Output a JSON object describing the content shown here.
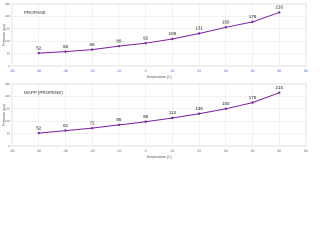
{
  "chart_data": [
    {
      "type": "line",
      "title": "PROPANE",
      "x_label": "Temperature (C)",
      "y_label": "Pressure (psi)",
      "x": [
        -40,
        -30,
        -20,
        -10,
        0,
        10,
        20,
        30,
        40,
        50
      ],
      "values": [
        52,
        58,
        66,
        80,
        92,
        109,
        131,
        156,
        178,
        216
      ],
      "color": "#7b1fa2",
      "xlim": [
        -50,
        60
      ],
      "xticks": [
        -50,
        -40,
        -30,
        -20,
        -10,
        0,
        10,
        20,
        30,
        40,
        50,
        60
      ],
      "ylim": [
        0,
        250
      ],
      "yticks": [
        0,
        50,
        100,
        150,
        200,
        250
      ],
      "grid": true
    },
    {
      "type": "line",
      "title": "MAPP (PROPENE)",
      "x_label": "Temperature (C)",
      "y_label": "Pressure (psi)",
      "x": [
        -40,
        -30,
        -20,
        -10,
        0,
        10,
        20,
        30,
        40,
        50
      ],
      "values": [
        52,
        62,
        72,
        85,
        98,
        113,
        130,
        150,
        175,
        215
      ],
      "color": "#7b1fa2",
      "xlim": [
        -50,
        60
      ],
      "xticks": [
        -50,
        -40,
        -30,
        -20,
        -10,
        0,
        10,
        20,
        30,
        40,
        50,
        60
      ],
      "ylim": [
        0,
        250
      ],
      "yticks": [
        0,
        50,
        100,
        150,
        200,
        250
      ],
      "grid": true
    }
  ]
}
